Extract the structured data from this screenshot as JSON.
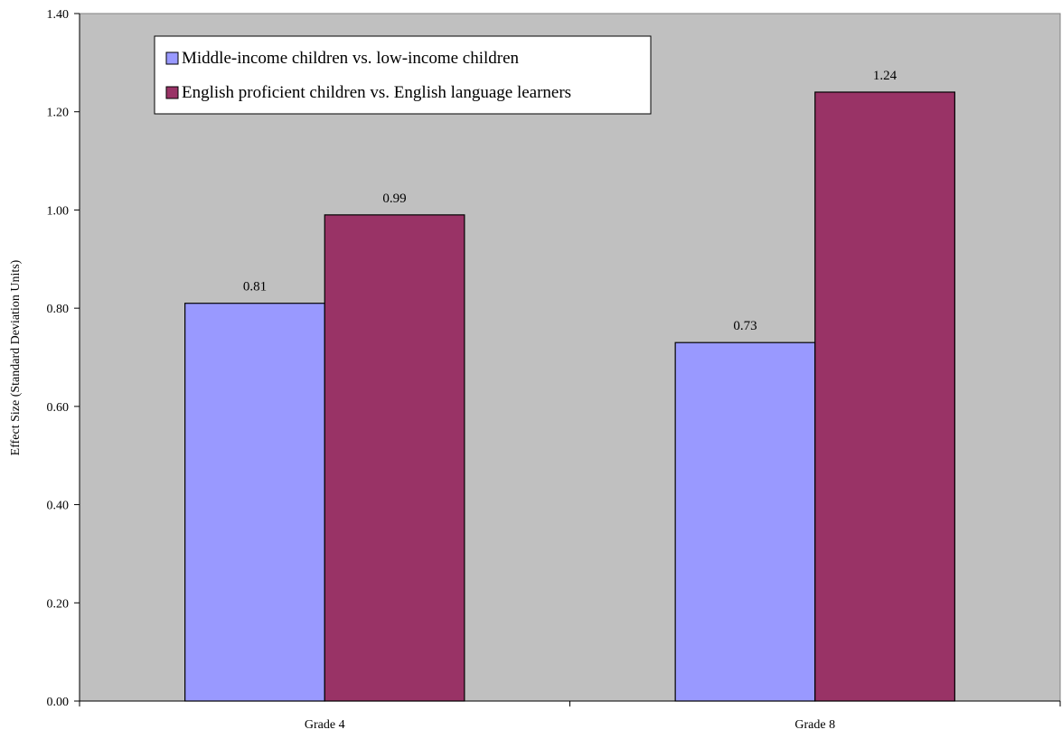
{
  "chart_data": {
    "type": "bar",
    "categories": [
      "Grade 4",
      "Grade 8"
    ],
    "series": [
      {
        "name": "Middle-income children vs. low-income children",
        "values": [
          0.81,
          0.73
        ],
        "labels": [
          "0.81",
          "0.73"
        ],
        "color": "#9999ff"
      },
      {
        "name": "English proficient children vs. English language learners",
        "values": [
          0.99,
          1.24
        ],
        "labels": [
          "0.99",
          "1.24"
        ],
        "color": "#993366"
      }
    ],
    "ylabel": "Effect Size (Standard Deviation Units)",
    "xlabel": "",
    "ylim": [
      0,
      1.4
    ],
    "yticks": [
      "0.00",
      "0.20",
      "0.40",
      "0.60",
      "0.80",
      "1.00",
      "1.20",
      "1.40"
    ],
    "grid": false,
    "legend": "top-left",
    "plot_background": "#c0c0c0"
  }
}
